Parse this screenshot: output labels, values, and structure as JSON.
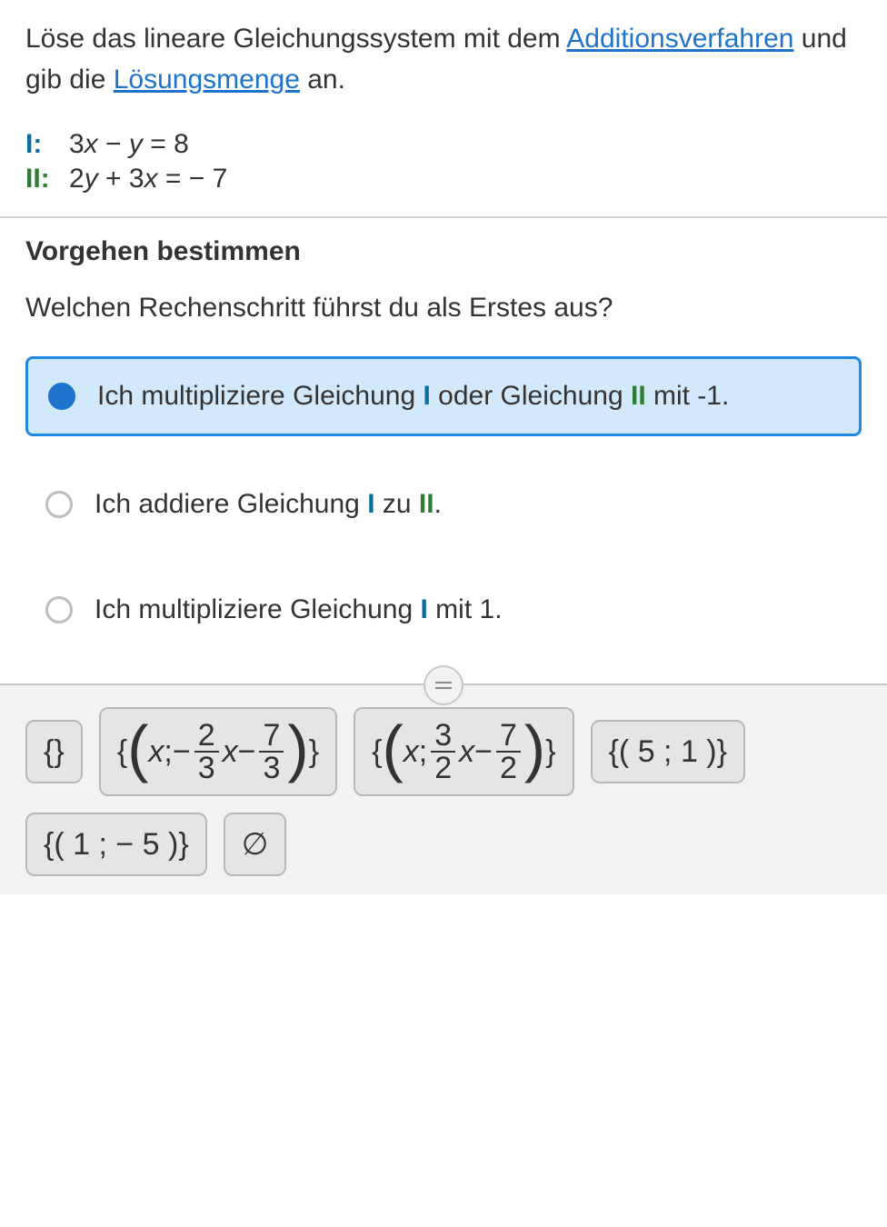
{
  "problem": {
    "text_pre": "Löse das lineare Gleichungssystem mit dem ",
    "link1": "Additionsverfahren",
    "text_mid": " und gib die ",
    "link2": "Lösungsmenge",
    "text_post": " an."
  },
  "equations": {
    "eq1": {
      "label": "I:",
      "lhs_a": "3",
      "lhs_var1": "x",
      "op1": " − ",
      "lhs_var2": "y",
      "eq": " = ",
      "rhs": "8"
    },
    "eq2": {
      "label": "II:",
      "lhs_a": "2",
      "lhs_var1": "y",
      "op1": " + ",
      "lhs_b": "3",
      "lhs_var2": "x",
      "eq": " = ",
      "rhs": " − 7"
    }
  },
  "step": {
    "heading": "Vorgehen bestimmen",
    "question": "Welchen Rechenschritt führst du als Erstes aus?"
  },
  "options": [
    {
      "pre": "Ich multipliziere Gleichung ",
      "i": "I",
      "mid": " oder Gleichung ",
      "ii": "II",
      "post": " mit -1.",
      "selected": true
    },
    {
      "pre": "Ich addiere Gleichung ",
      "i": "I",
      "mid": " zu ",
      "ii": "II",
      "post": ".",
      "selected": false
    },
    {
      "pre": "Ich multipliziere Gleichung ",
      "i": "I",
      "mid": "",
      "ii": "",
      "post": " mit 1.",
      "selected": false
    }
  ],
  "answers": {
    "chip0": "{}",
    "chip1": {
      "x": "x",
      "sep": " ; ",
      "neg": " − ",
      "f1n": "2",
      "f1d": "3",
      "xv": "x",
      "minus": " − ",
      "f2n": "7",
      "f2d": "3"
    },
    "chip2": {
      "x": "x",
      "sep": " ; ",
      "f1n": "3",
      "f1d": "2",
      "xv": "x",
      "minus": " − ",
      "f2n": "7",
      "f2d": "2"
    },
    "chip3": "{( 5 ; 1 )}",
    "chip4": "{( 1 ; − 5 )}",
    "chip5": "∅"
  },
  "colors": {
    "link": "#1e73cc",
    "eqI": "#0a6ea0",
    "eqII": "#2e7d32",
    "selected_bg": "#d2e8fb",
    "selected_border": "#1e88e5",
    "panel_bg": "#f2f2f2",
    "chip_bg": "#e5e5e5",
    "chip_border": "#b8b8b8"
  }
}
